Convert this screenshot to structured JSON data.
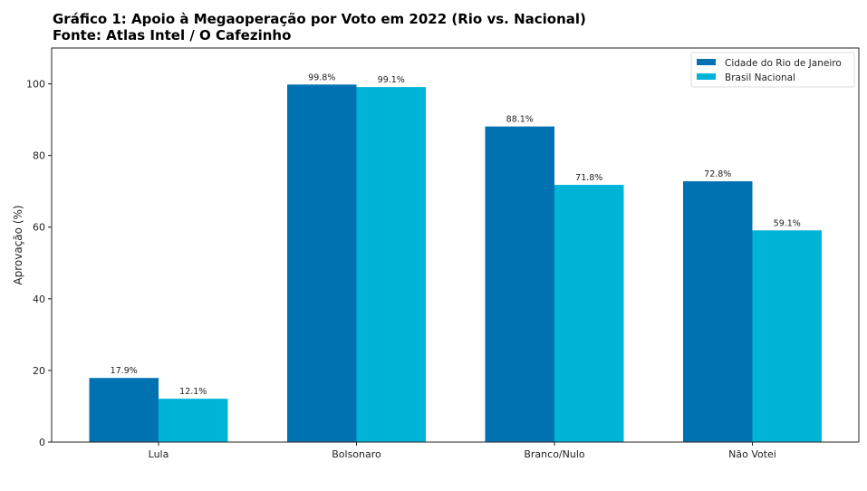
{
  "chart_data": {
    "type": "bar",
    "title": "Gráfico 1: Apoio à Megaoperação por Voto em 2022 (Rio vs. Nacional)",
    "subtitle": "Fonte: Atlas Intel / O Cafezinho",
    "xlabel": "",
    "ylabel": "Aprovação (%)",
    "ylim": [
      0,
      110
    ],
    "yticks": [
      0,
      20,
      40,
      60,
      80,
      100
    ],
    "grid": false,
    "legend_position": "top-right",
    "categories": [
      "Lula",
      "Bolsonaro",
      "Branco/Nulo",
      "Não Votei"
    ],
    "series": [
      {
        "name": "Cidade do Rio de Janeiro",
        "color": "#0072B2",
        "values": [
          17.9,
          99.8,
          88.1,
          72.8
        ],
        "labels": [
          "17.9%",
          "99.8%",
          "88.1%",
          "72.8%"
        ]
      },
      {
        "name": "Brasil Nacional",
        "color": "#00B4D8",
        "values": [
          12.1,
          99.1,
          71.8,
          59.1
        ],
        "labels": [
          "12.1%",
          "99.1%",
          "71.8%",
          "59.1%"
        ]
      }
    ]
  }
}
